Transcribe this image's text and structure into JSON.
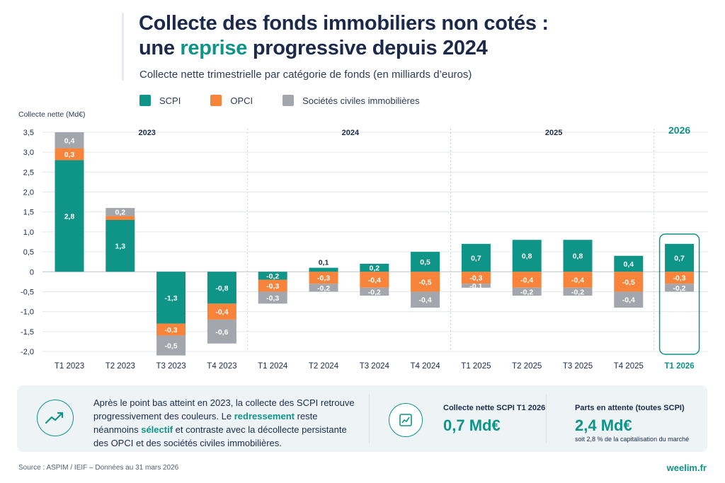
{
  "header": {
    "title_line1": "Collecte des fonds immobiliers non cotés :",
    "title_line2_pre": "une ",
    "title_line2_accent": "reprise",
    "title_line2_post": " progressive depuis 2024",
    "subtitle": "Collecte nette trimestrielle par catégorie de fonds (en milliards d’euros)"
  },
  "colors": {
    "scpi": "#0f9488",
    "opci": "#f7843a",
    "sci": "#a3a7ad",
    "accent": "#0f9488",
    "text": "#1b2a4a"
  },
  "chart_data": {
    "type": "bar",
    "stacked": true,
    "ylabel": "Collecte nette (Md€)",
    "ylim": [
      -2.0,
      3.5
    ],
    "yticks": [
      "3,5",
      "3,0",
      "2,5",
      "2,0",
      "1,5",
      "1,0",
      "0,5",
      "0",
      "-0,5",
      "-1,0",
      "-1,5",
      "-2,0"
    ],
    "year_groups": [
      {
        "label": "2023",
        "start": 0,
        "end": 3
      },
      {
        "label": "2024",
        "start": 4,
        "end": 7
      },
      {
        "label": "2025",
        "start": 8,
        "end": 11
      },
      {
        "label": "2026",
        "start": 12,
        "end": 12
      }
    ],
    "categories": [
      "T1 2023",
      "T2 2023",
      "T3 2023",
      "T4 2023",
      "T1 2024",
      "T2 2024",
      "T3 2024",
      "T4 2024",
      "T1 2025",
      "T2 2025",
      "T3 2025",
      "T4 2025",
      "T1 2026"
    ],
    "highlight_index": 12,
    "series": [
      {
        "name": "SCPI",
        "values": [
          2.8,
          1.3,
          -1.3,
          -0.8,
          -0.2,
          0.1,
          0.2,
          0.5,
          0.7,
          0.8,
          0.8,
          0.4,
          0.7
        ],
        "labels": [
          "2,8",
          "1,3",
          "-1,3",
          "-0,8",
          "-0,2",
          "0,1",
          "0,2",
          "0,5",
          "0,7",
          "0,8",
          "0,8",
          "0,4",
          "0,7"
        ]
      },
      {
        "name": "OPCI",
        "values": [
          0.3,
          0.1,
          -0.3,
          -0.4,
          -0.3,
          -0.3,
          -0.4,
          -0.5,
          -0.3,
          -0.4,
          -0.4,
          -0.5,
          -0.3
        ],
        "labels": [
          "0,3",
          "0,1",
          "-0,3",
          "-0,4",
          "-0,3",
          "-0,3",
          "-0,4",
          "-0,5",
          "-0,3",
          "-0,4",
          "-0,4",
          "-0,5",
          "-0,3"
        ]
      },
      {
        "name": "Sociétés civiles immobilières",
        "values": [
          0.4,
          0.2,
          -0.5,
          -0.6,
          -0.3,
          -0.2,
          -0.2,
          -0.4,
          -0.1,
          -0.2,
          -0.2,
          -0.4,
          -0.2
        ],
        "labels": [
          "0,4",
          "0,2",
          "-0,5",
          "-0,6",
          "-0,3",
          "-0,2",
          "-0,2",
          "-0,4",
          "-0,1",
          "-0,2",
          "-0,2",
          "-0,4",
          "-0,2"
        ]
      }
    ]
  },
  "panel": {
    "text_part1": "Après le point bas atteint en 2023, la collecte des SCPI retrouve progressivement des couleurs. Le ",
    "text_hl1": "redressement",
    "text_part2": " reste néanmoins ",
    "text_hl2": "sélectif",
    "text_part3": " et contraste avec la décollecte persistante des OPCI et des sociétés civiles immobilières.",
    "kpi1_label": "Collecte nette SCPI T1 2026",
    "kpi1_value": "0,7 Md€",
    "kpi2_label": "Parts en attente (toutes SCPI)",
    "kpi2_value": "2,4 Md€",
    "kpi2_note": "soit 2,8 % de la capitalisation du marché",
    "trend_icon": "trend-up-icon",
    "document_icon": "chart-document-icon"
  },
  "footer": {
    "source": "Source : ASPIM / IEIF – Données au 31 mars 2026",
    "brand": "weelim.fr"
  }
}
